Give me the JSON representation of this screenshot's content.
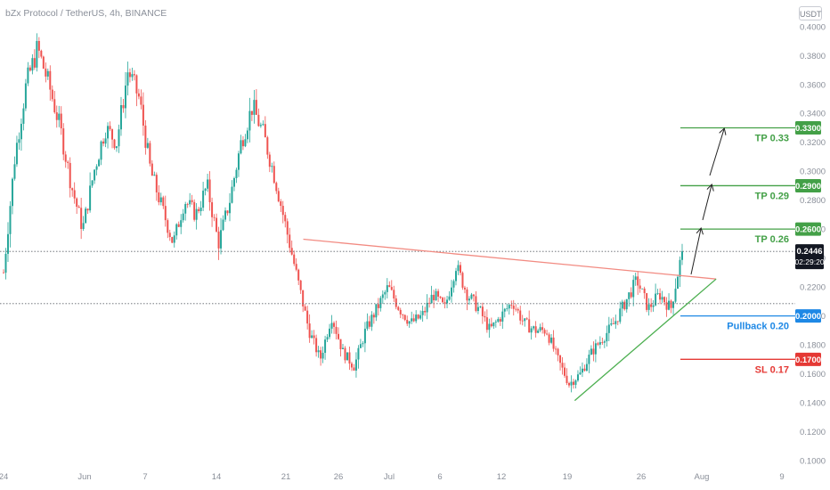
{
  "header": {
    "title": "bZx Protocol / TetherUS, 4h, BINANCE",
    "currency": "USDT"
  },
  "colors": {
    "up": "#26a69a",
    "down": "#ef5350",
    "tp": "#43a047",
    "pullback": "#1e88e5",
    "sl": "#e53935",
    "resistance": "#f28b82"
  },
  "chart_data": {
    "type": "candlestick",
    "ylim": [
      0.1,
      0.4
    ],
    "y_ticks": [
      "0.4000",
      "0.3800",
      "0.3600",
      "0.3400",
      "0.3200",
      "0.3000",
      "0.2800",
      "0.2600",
      "0.2400",
      "0.2200",
      "0.2000",
      "0.1800",
      "0.1600",
      "0.1400",
      "0.1200",
      "0.1000"
    ],
    "x_ticks": [
      "24",
      "Jun",
      "7",
      "14",
      "21",
      "26",
      "Jul",
      "6",
      "12",
      "19",
      "26",
      "Aug",
      "9"
    ],
    "price_path": [
      [
        0,
        0.23
      ],
      [
        1,
        0.31
      ],
      [
        2,
        0.36
      ],
      [
        3,
        0.385
      ],
      [
        4,
        0.36
      ],
      [
        5,
        0.33
      ],
      [
        6,
        0.29
      ],
      [
        7,
        0.26
      ],
      [
        8,
        0.3
      ],
      [
        9,
        0.33
      ],
      [
        10,
        0.32
      ],
      [
        11,
        0.37
      ],
      [
        12,
        0.35
      ],
      [
        13,
        0.3
      ],
      [
        14,
        0.275
      ],
      [
        15,
        0.25
      ],
      [
        16,
        0.28
      ],
      [
        17,
        0.27
      ],
      [
        18,
        0.29
      ],
      [
        19,
        0.25
      ],
      [
        20,
        0.28
      ],
      [
        21,
        0.32
      ],
      [
        22,
        0.345
      ],
      [
        23,
        0.325
      ],
      [
        24,
        0.295
      ],
      [
        25,
        0.26
      ],
      [
        26,
        0.225
      ],
      [
        27,
        0.19
      ],
      [
        28,
        0.17
      ],
      [
        29,
        0.2
      ],
      [
        30,
        0.175
      ],
      [
        31,
        0.165
      ],
      [
        32,
        0.19
      ],
      [
        33,
        0.205
      ],
      [
        34,
        0.22
      ],
      [
        35,
        0.205
      ],
      [
        36,
        0.195
      ],
      [
        37,
        0.2
      ],
      [
        38,
        0.215
      ],
      [
        39,
        0.205
      ],
      [
        40,
        0.235
      ],
      [
        41,
        0.215
      ],
      [
        42,
        0.205
      ],
      [
        43,
        0.19
      ],
      [
        44,
        0.2
      ],
      [
        45,
        0.21
      ],
      [
        46,
        0.195
      ],
      [
        47,
        0.19
      ],
      [
        48,
        0.19
      ],
      [
        49,
        0.17
      ],
      [
        50,
        0.153
      ],
      [
        51,
        0.16
      ],
      [
        52,
        0.175
      ],
      [
        53,
        0.185
      ],
      [
        54,
        0.195
      ],
      [
        55,
        0.21
      ],
      [
        56,
        0.225
      ],
      [
        57,
        0.205
      ],
      [
        58,
        0.215
      ],
      [
        59,
        0.205
      ],
      [
        60,
        0.2446
      ]
    ],
    "current_price": {
      "value": "0.2446",
      "countdown": "02:29:20"
    },
    "levels": [
      {
        "label": "TP 0.33",
        "price": 0.33,
        "tag": "0.3300",
        "kind": "tp"
      },
      {
        "label": "TP 0.29",
        "price": 0.29,
        "tag": "0.2900",
        "kind": "tp"
      },
      {
        "label": "TP 0.26",
        "price": 0.26,
        "tag": "0.2600",
        "kind": "tp"
      },
      {
        "label": "Pullback 0.20",
        "price": 0.2,
        "tag": "0.2000",
        "kind": "pullback"
      },
      {
        "label": "SL 0.17",
        "price": 0.17,
        "tag": "0.1700",
        "kind": "sl"
      }
    ],
    "support_price": 0.2085,
    "resistance_line": [
      [
        26.5,
        0.253
      ],
      [
        63,
        0.2255
      ]
    ],
    "support_line": [
      [
        50.5,
        0.1415
      ],
      [
        63,
        0.2255
      ]
    ]
  }
}
